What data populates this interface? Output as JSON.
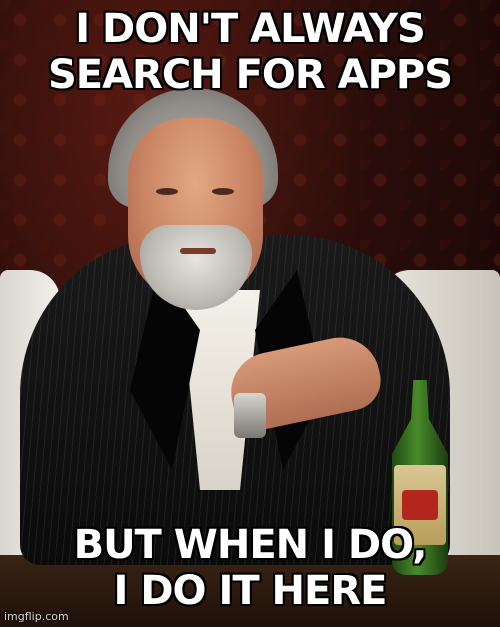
{
  "meme": {
    "top_text": [
      "I DON'T ALWAYS",
      "SEARCH FOR APPS"
    ],
    "bottom_text": [
      "BUT WHEN I DO,",
      "I DO IT HERE"
    ],
    "watermark": "imgflip.com"
  },
  "colors": {
    "caption_fill": "#ffffff",
    "caption_outline": "#000000",
    "background": "#2a0d0a"
  }
}
